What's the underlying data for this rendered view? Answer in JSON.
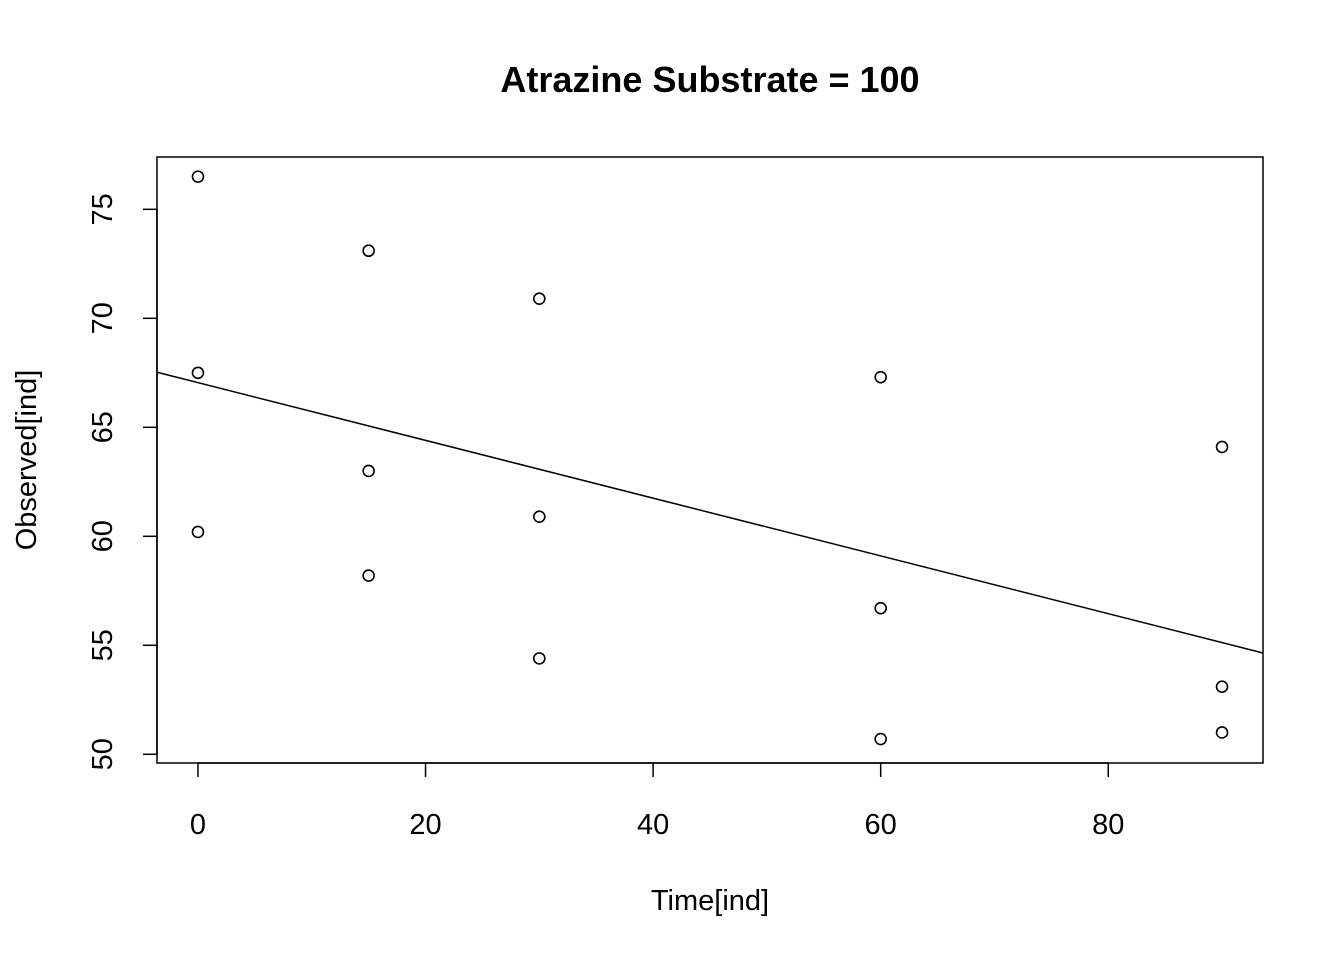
{
  "chart_data": {
    "type": "scatter",
    "title": "Atrazine Substrate = 100",
    "xlabel": "Time[ind]",
    "ylabel": "Observed[ind]",
    "xlim": [
      -3.6,
      93.6
    ],
    "ylim": [
      49.6,
      77.4
    ],
    "x_ticks": [
      0,
      20,
      40,
      60,
      80
    ],
    "y_ticks": [
      50,
      55,
      60,
      65,
      70,
      75
    ],
    "grid": false,
    "legend": "none",
    "points": [
      {
        "x": 0,
        "y": 76.5
      },
      {
        "x": 0,
        "y": 67.5
      },
      {
        "x": 0,
        "y": 60.2
      },
      {
        "x": 15,
        "y": 73.1
      },
      {
        "x": 15,
        "y": 63.0
      },
      {
        "x": 15,
        "y": 58.2
      },
      {
        "x": 30,
        "y": 70.9
      },
      {
        "x": 30,
        "y": 60.9
      },
      {
        "x": 30,
        "y": 54.4
      },
      {
        "x": 60,
        "y": 67.3
      },
      {
        "x": 60,
        "y": 56.7
      },
      {
        "x": 60,
        "y": 50.7
      },
      {
        "x": 90,
        "y": 64.1
      },
      {
        "x": 90,
        "y": 53.1
      },
      {
        "x": 90,
        "y": 51.0
      }
    ],
    "fit_line": {
      "intercept": 67.05,
      "slope": -0.1325
    },
    "colors": {
      "points": "#000000",
      "line": "#000000",
      "frame": "#000000"
    }
  }
}
